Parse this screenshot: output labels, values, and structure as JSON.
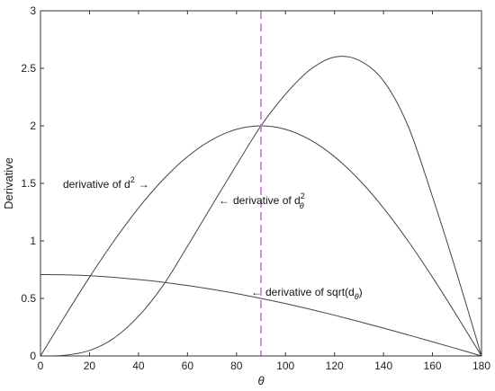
{
  "chart_data": {
    "type": "line",
    "title": "",
    "xlabel": "θ",
    "ylabel": "Derivative",
    "xlim": [
      0,
      180
    ],
    "ylim": [
      0,
      3
    ],
    "xticks": [
      0,
      20,
      40,
      60,
      80,
      100,
      120,
      140,
      160,
      180
    ],
    "yticks": [
      0,
      0.5,
      1,
      1.5,
      2,
      2.5,
      3
    ],
    "ytick_labels": [
      "0",
      "0.5",
      "1",
      "1.5",
      "2",
      "2.5",
      "3"
    ],
    "grid": false,
    "legend": "none",
    "x": [
      0,
      10,
      20,
      30,
      40,
      50,
      60,
      70,
      80,
      90,
      100,
      110,
      120,
      130,
      140,
      150,
      160,
      170,
      180
    ],
    "series": [
      {
        "annotation": "derivative of d",
        "annotation_sup": "2",
        "annotation_arrow": "→",
        "color": "#444444",
        "values": [
          0,
          0.347,
          0.684,
          1.0,
          1.286,
          1.532,
          1.732,
          1.879,
          1.97,
          2.0,
          1.97,
          1.879,
          1.732,
          1.532,
          1.286,
          1.0,
          0.684,
          0.347,
          0
        ]
      },
      {
        "annotation": "derivative of d",
        "annotation_sup": "2",
        "annotation_sub": "θ",
        "annotation_arrow": "←",
        "color": "#444444",
        "values": [
          0,
          0.0063,
          0.0473,
          0.155,
          0.345,
          0.612,
          0.954,
          1.309,
          1.66,
          2.0,
          2.275,
          2.487,
          2.598,
          2.57,
          2.391,
          2.0,
          1.384,
          0.712,
          0
        ]
      },
      {
        "annotation": "derivative of sqrt(d",
        "annotation_sub": "θ",
        "annotation_tail": ")",
        "annotation_arrow": "←",
        "color": "#444444",
        "values": [
          0.707,
          0.705,
          0.697,
          0.683,
          0.664,
          0.641,
          0.612,
          0.579,
          0.542,
          0.5,
          0.455,
          0.406,
          0.354,
          0.299,
          0.242,
          0.183,
          0.123,
          0.062,
          0
        ]
      }
    ],
    "vline": {
      "x": 90,
      "color": "#cc66dd",
      "style": "dashed"
    }
  }
}
